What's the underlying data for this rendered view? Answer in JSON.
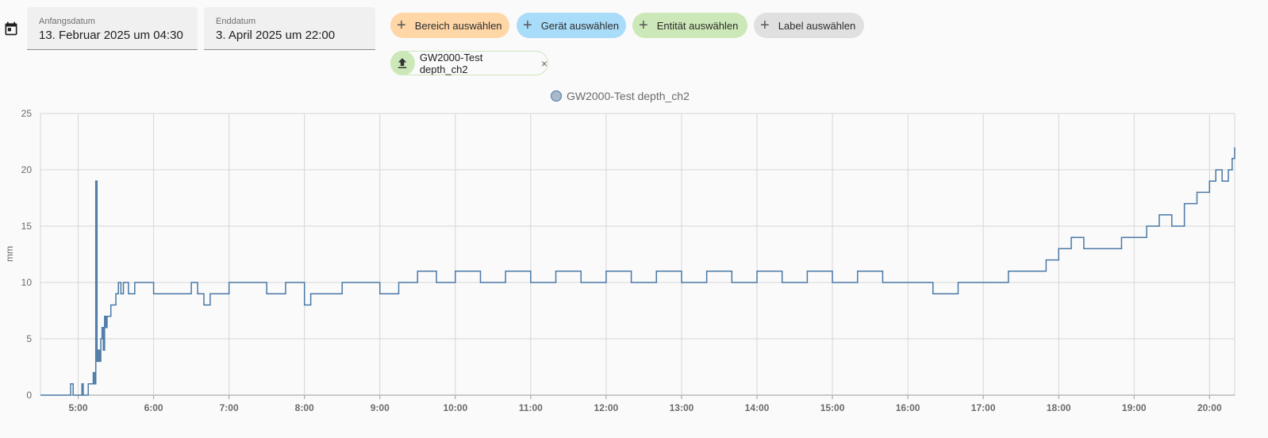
{
  "date_range": {
    "start": {
      "label": "Anfangsdatum",
      "value": "13. Februar 2025 um 04:30"
    },
    "end": {
      "label": "Enddatum",
      "value": "3. April 2025 um 22:00"
    }
  },
  "pickers": {
    "area": "Bereich auswählen",
    "device": "Gerät auswählen",
    "entity": "Entität auswählen",
    "label": "Label auswählen"
  },
  "selected_entity": {
    "name": "GW2000-Test depth_ch2",
    "icon": "upload-icon"
  },
  "colors": {
    "area_chip": "#ffd6a6",
    "device_chip": "#a9dcf8",
    "entity_chip": "#cde8b8",
    "label_chip": "#e0e0e0",
    "series": "#4a78a6"
  },
  "chart_data": {
    "type": "line",
    "step": true,
    "grid": true,
    "legend_position": "top-center",
    "ylabel": "mm",
    "xlabel": "",
    "ylim": [
      0,
      25
    ],
    "yticks": [
      0,
      5,
      10,
      15,
      20,
      25
    ],
    "xlim": [
      "04:30",
      "20:20"
    ],
    "xticks": [
      "5:00",
      "6:00",
      "7:00",
      "8:00",
      "9:00",
      "10:00",
      "11:00",
      "12:00",
      "13:00",
      "14:00",
      "15:00",
      "16:00",
      "17:00",
      "18:00",
      "19:00",
      "20:00"
    ],
    "series": [
      {
        "name": "GW2000-Test depth_ch2",
        "x": [
          "04:30",
          "04:54",
          "04:56",
          "05:03",
          "05:04",
          "05:08",
          "05:12",
          "05:13",
          "05:14",
          "05:15",
          "05:16",
          "05:17",
          "05:18",
          "05:19",
          "05:20",
          "05:21",
          "05:22",
          "05:23",
          "05:24",
          "05:25",
          "05:26",
          "05:28",
          "05:30",
          "05:32",
          "05:34",
          "05:36",
          "05:40",
          "05:45",
          "06:00",
          "06:30",
          "06:35",
          "06:40",
          "06:45",
          "07:00",
          "07:30",
          "07:45",
          "08:00",
          "08:05",
          "08:30",
          "09:00",
          "09:15",
          "09:30",
          "09:45",
          "10:00",
          "10:20",
          "10:40",
          "11:00",
          "11:20",
          "11:40",
          "12:00",
          "12:20",
          "12:40",
          "13:00",
          "13:20",
          "13:40",
          "14:00",
          "14:20",
          "14:40",
          "15:00",
          "15:20",
          "15:40",
          "16:00",
          "16:20",
          "16:40",
          "17:00",
          "17:20",
          "17:40",
          "17:50",
          "18:00",
          "18:10",
          "18:20",
          "18:40",
          "18:50",
          "19:00",
          "19:10",
          "19:20",
          "19:30",
          "19:40",
          "19:50",
          "20:00",
          "20:05",
          "20:10",
          "20:15",
          "20:18",
          "20:20"
        ],
        "y": [
          0,
          1,
          0,
          1,
          0,
          1,
          2,
          1,
          19,
          3,
          4,
          3,
          5,
          6,
          4,
          7,
          6,
          7,
          7,
          7,
          8,
          8,
          9,
          10,
          9,
          10,
          9,
          10,
          9,
          10,
          9,
          8,
          9,
          10,
          9,
          10,
          8,
          9,
          10,
          9,
          10,
          11,
          10,
          11,
          10,
          11,
          10,
          11,
          10,
          11,
          10,
          11,
          10,
          11,
          10,
          11,
          10,
          11,
          10,
          11,
          10,
          10,
          9,
          10,
          10,
          11,
          11,
          12,
          13,
          14,
          13,
          13,
          14,
          14,
          15,
          16,
          15,
          17,
          18,
          19,
          20,
          19,
          20,
          21,
          22
        ]
      }
    ]
  }
}
